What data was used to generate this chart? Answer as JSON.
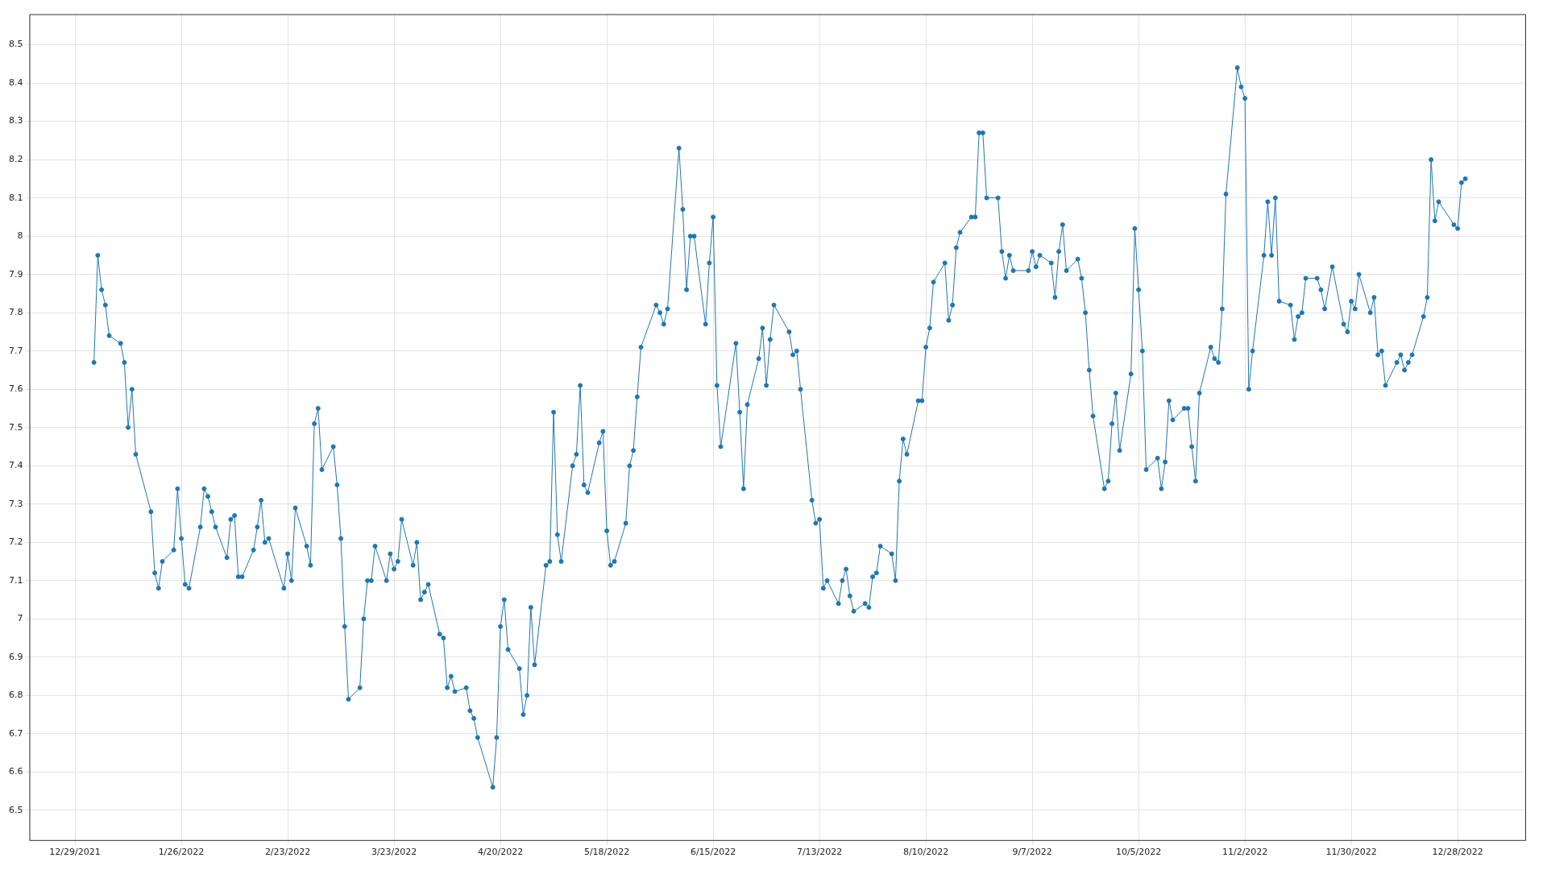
{
  "chart_data": {
    "type": "line",
    "marker": "circle",
    "line_style": "solid",
    "grid": true,
    "legend": false,
    "xlim": [
      "2021-12-17",
      "2023-01-15"
    ],
    "xticks": [
      {
        "value": "2021-12-29",
        "label": "12/29/2021"
      },
      {
        "value": "2022-01-26",
        "label": "1/26/2022"
      },
      {
        "value": "2022-02-23",
        "label": "2/23/2022"
      },
      {
        "value": "2022-03-23",
        "label": "3/23/2022"
      },
      {
        "value": "2022-04-20",
        "label": "4/20/2022"
      },
      {
        "value": "2022-05-18",
        "label": "5/18/2022"
      },
      {
        "value": "2022-06-15",
        "label": "6/15/2022"
      },
      {
        "value": "2022-07-13",
        "label": "7/13/2022"
      },
      {
        "value": "2022-08-10",
        "label": "8/10/2022"
      },
      {
        "value": "2022-09-07",
        "label": "9/7/2022"
      },
      {
        "value": "2022-10-05",
        "label": "10/5/2022"
      },
      {
        "value": "2022-11-02",
        "label": "11/2/2022"
      },
      {
        "value": "2022-11-30",
        "label": "11/30/2022"
      },
      {
        "value": "2022-12-28",
        "label": "12/28/2022"
      }
    ],
    "ylim": [
      6.42,
      8.58
    ],
    "yticks": [
      {
        "value": 6.5,
        "label": "6.5"
      },
      {
        "value": 6.6,
        "label": "6.6"
      },
      {
        "value": 6.7,
        "label": "6.7"
      },
      {
        "value": 6.8,
        "label": "6.8"
      },
      {
        "value": 6.9,
        "label": "6.9"
      },
      7,
      {
        "value": 7.1,
        "label": "7.1"
      },
      {
        "value": 7.2,
        "label": "7.2"
      },
      {
        "value": 7.3,
        "label": "7.3"
      },
      {
        "value": 7.4,
        "label": "7.4"
      },
      {
        "value": 7.5,
        "label": "7.5"
      },
      {
        "value": 7.6,
        "label": "7.6"
      },
      {
        "value": 7.7,
        "label": "7.7"
      },
      {
        "value": 7.8,
        "label": "7.8"
      },
      {
        "value": 7.9,
        "label": "7.9"
      },
      8,
      {
        "value": 8.1,
        "label": "8.1"
      },
      {
        "value": 8.2,
        "label": "8.2"
      },
      {
        "value": 8.3,
        "label": "8.3"
      },
      {
        "value": 8.4,
        "label": "8.4"
      },
      {
        "value": 8.5,
        "label": "8.5"
      }
    ],
    "series": [
      {
        "color": "#1f77b4",
        "x": [
          "2022-01-03",
          "2022-01-04",
          "2022-01-05",
          "2022-01-06",
          "2022-01-07",
          "2022-01-10",
          "2022-01-11",
          "2022-01-12",
          "2022-01-13",
          "2022-01-14",
          "2022-01-18",
          "2022-01-19",
          "2022-01-20",
          "2022-01-21",
          "2022-01-24",
          "2022-01-25",
          "2022-01-26",
          "2022-01-27",
          "2022-01-28",
          "2022-01-31",
          "2022-02-01",
          "2022-02-02",
          "2022-02-03",
          "2022-02-04",
          "2022-02-07",
          "2022-02-08",
          "2022-02-09",
          "2022-02-10",
          "2022-02-11",
          "2022-02-14",
          "2022-02-15",
          "2022-02-16",
          "2022-02-17",
          "2022-02-18",
          "2022-02-22",
          "2022-02-23",
          "2022-02-24",
          "2022-02-25",
          "2022-02-28",
          "2022-03-01",
          "2022-03-02",
          "2022-03-03",
          "2022-03-04",
          "2022-03-07",
          "2022-03-08",
          "2022-03-09",
          "2022-03-10",
          "2022-03-11",
          "2022-03-14",
          "2022-03-15",
          "2022-03-16",
          "2022-03-17",
          "2022-03-18",
          "2022-03-21",
          "2022-03-22",
          "2022-03-23",
          "2022-03-24",
          "2022-03-25",
          "2022-03-28",
          "2022-03-29",
          "2022-03-30",
          "2022-03-31",
          "2022-04-01",
          "2022-04-04",
          "2022-04-05",
          "2022-04-06",
          "2022-04-07",
          "2022-04-08",
          "2022-04-11",
          "2022-04-12",
          "2022-04-13",
          "2022-04-14",
          "2022-04-18",
          "2022-04-19",
          "2022-04-20",
          "2022-04-21",
          "2022-04-22",
          "2022-04-25",
          "2022-04-26",
          "2022-04-27",
          "2022-04-28",
          "2022-04-29",
          "2022-05-02",
          "2022-05-03",
          "2022-05-04",
          "2022-05-05",
          "2022-05-06",
          "2022-05-09",
          "2022-05-10",
          "2022-05-11",
          "2022-05-12",
          "2022-05-13",
          "2022-05-16",
          "2022-05-17",
          "2022-05-18",
          "2022-05-19",
          "2022-05-20",
          "2022-05-23",
          "2022-05-24",
          "2022-05-25",
          "2022-05-26",
          "2022-05-27",
          "2022-05-31",
          "2022-06-01",
          "2022-06-02",
          "2022-06-03",
          "2022-06-06",
          "2022-06-07",
          "2022-06-08",
          "2022-06-09",
          "2022-06-10",
          "2022-06-13",
          "2022-06-14",
          "2022-06-15",
          "2022-06-16",
          "2022-06-17",
          "2022-06-21",
          "2022-06-22",
          "2022-06-23",
          "2022-06-24",
          "2022-06-27",
          "2022-06-28",
          "2022-06-29",
          "2022-06-30",
          "2022-07-01",
          "2022-07-05",
          "2022-07-06",
          "2022-07-07",
          "2022-07-08",
          "2022-07-11",
          "2022-07-12",
          "2022-07-13",
          "2022-07-14",
          "2022-07-15",
          "2022-07-18",
          "2022-07-19",
          "2022-07-20",
          "2022-07-21",
          "2022-07-22",
          "2022-07-25",
          "2022-07-26",
          "2022-07-27",
          "2022-07-28",
          "2022-07-29",
          "2022-08-01",
          "2022-08-02",
          "2022-08-03",
          "2022-08-04",
          "2022-08-05",
          "2022-08-08",
          "2022-08-09",
          "2022-08-10",
          "2022-08-11",
          "2022-08-12",
          "2022-08-15",
          "2022-08-16",
          "2022-08-17",
          "2022-08-18",
          "2022-08-19",
          "2022-08-22",
          "2022-08-23",
          "2022-08-24",
          "2022-08-25",
          "2022-08-26",
          "2022-08-29",
          "2022-08-30",
          "2022-08-31",
          "2022-09-01",
          "2022-09-02",
          "2022-09-06",
          "2022-09-07",
          "2022-09-08",
          "2022-09-09",
          "2022-09-12",
          "2022-09-13",
          "2022-09-14",
          "2022-09-15",
          "2022-09-16",
          "2022-09-19",
          "2022-09-20",
          "2022-09-21",
          "2022-09-22",
          "2022-09-23",
          "2022-09-26",
          "2022-09-27",
          "2022-09-28",
          "2022-09-29",
          "2022-09-30",
          "2022-10-03",
          "2022-10-04",
          "2022-10-05",
          "2022-10-06",
          "2022-10-07",
          "2022-10-10",
          "2022-10-11",
          "2022-10-12",
          "2022-10-13",
          "2022-10-14",
          "2022-10-17",
          "2022-10-18",
          "2022-10-19",
          "2022-10-20",
          "2022-10-21",
          "2022-10-24",
          "2022-10-25",
          "2022-10-26",
          "2022-10-27",
          "2022-10-28",
          "2022-10-31",
          "2022-11-01",
          "2022-11-02",
          "2022-11-03",
          "2022-11-04",
          "2022-11-07",
          "2022-11-08",
          "2022-11-09",
          "2022-11-10",
          "2022-11-11",
          "2022-11-14",
          "2022-11-15",
          "2022-11-16",
          "2022-11-17",
          "2022-11-18",
          "2022-11-21",
          "2022-11-22",
          "2022-11-23",
          "2022-11-25",
          "2022-11-28",
          "2022-11-29",
          "2022-11-30",
          "2022-12-01",
          "2022-12-02",
          "2022-12-05",
          "2022-12-06",
          "2022-12-07",
          "2022-12-08",
          "2022-12-09",
          "2022-12-12",
          "2022-12-13",
          "2022-12-14",
          "2022-12-15",
          "2022-12-16",
          "2022-12-19",
          "2022-12-20",
          "2022-12-21",
          "2022-12-22",
          "2022-12-23",
          "2022-12-27",
          "2022-12-28",
          "2022-12-29",
          "2022-12-30"
        ],
        "values": [
          7.67,
          7.95,
          7.86,
          7.82,
          7.74,
          7.72,
          7.67,
          7.5,
          7.6,
          7.43,
          7.28,
          7.12,
          7.08,
          7.15,
          7.18,
          7.34,
          7.21,
          7.09,
          7.08,
          7.24,
          7.34,
          7.32,
          7.28,
          7.24,
          7.16,
          7.26,
          7.27,
          7.11,
          7.11,
          7.18,
          7.24,
          7.31,
          7.2,
          7.21,
          7.08,
          7.17,
          7.1,
          7.29,
          7.19,
          7.14,
          7.51,
          7.55,
          7.39,
          7.45,
          7.35,
          7.21,
          6.98,
          6.79,
          6.82,
          7.0,
          7.1,
          7.1,
          7.19,
          7.1,
          7.17,
          7.13,
          7.15,
          7.26,
          7.14,
          7.2,
          7.05,
          7.07,
          7.09,
          6.96,
          6.95,
          6.82,
          6.85,
          6.81,
          6.82,
          6.76,
          6.74,
          6.69,
          6.56,
          6.69,
          6.98,
          7.05,
          6.92,
          6.87,
          6.75,
          6.8,
          7.03,
          6.88,
          7.14,
          7.15,
          7.54,
          7.22,
          7.15,
          7.4,
          7.43,
          7.61,
          7.35,
          7.33,
          7.46,
          7.49,
          7.23,
          7.14,
          7.15,
          7.25,
          7.4,
          7.44,
          7.58,
          7.71,
          7.82,
          7.8,
          7.77,
          7.81,
          8.23,
          8.07,
          7.86,
          8.0,
          8.0,
          7.77,
          7.93,
          8.05,
          7.61,
          7.45,
          7.72,
          7.54,
          7.34,
          7.56,
          7.68,
          7.76,
          7.61,
          7.73,
          7.82,
          7.75,
          7.69,
          7.7,
          7.6,
          7.31,
          7.25,
          7.26,
          7.08,
          7.1,
          7.04,
          7.1,
          7.13,
          7.06,
          7.02,
          7.04,
          7.03,
          7.11,
          7.12,
          7.19,
          7.17,
          7.1,
          7.36,
          7.47,
          7.43,
          7.57,
          7.57,
          7.71,
          7.76,
          7.88,
          7.93,
          7.78,
          7.82,
          7.97,
          8.01,
          8.05,
          8.05,
          8.27,
          8.27,
          8.1,
          8.1,
          7.96,
          7.89,
          7.95,
          7.91,
          7.91,
          7.96,
          7.92,
          7.95,
          7.93,
          7.84,
          7.96,
          8.03,
          7.91,
          7.94,
          7.89,
          7.8,
          7.65,
          7.53,
          7.34,
          7.36,
          7.51,
          7.59,
          7.44,
          7.64,
          8.02,
          7.86,
          7.7,
          7.39,
          7.42,
          7.34,
          7.41,
          7.57,
          7.52,
          7.55,
          7.55,
          7.45,
          7.36,
          7.59,
          7.71,
          7.68,
          7.67,
          7.81,
          8.11,
          8.44,
          8.39,
          8.36,
          7.6,
          7.7,
          7.95,
          8.09,
          7.95,
          8.1,
          7.83,
          7.82,
          7.73,
          7.79,
          7.8,
          7.89,
          7.89,
          7.86,
          7.81,
          7.92,
          7.77,
          7.75,
          7.83,
          7.81,
          7.9,
          7.8,
          7.84,
          7.69,
          7.7,
          7.61,
          7.67,
          7.69,
          7.65,
          7.67,
          7.69,
          7.79,
          7.84,
          8.2,
          8.04,
          8.09,
          8.03,
          8.02,
          8.14,
          8.15
        ]
      }
    ]
  }
}
